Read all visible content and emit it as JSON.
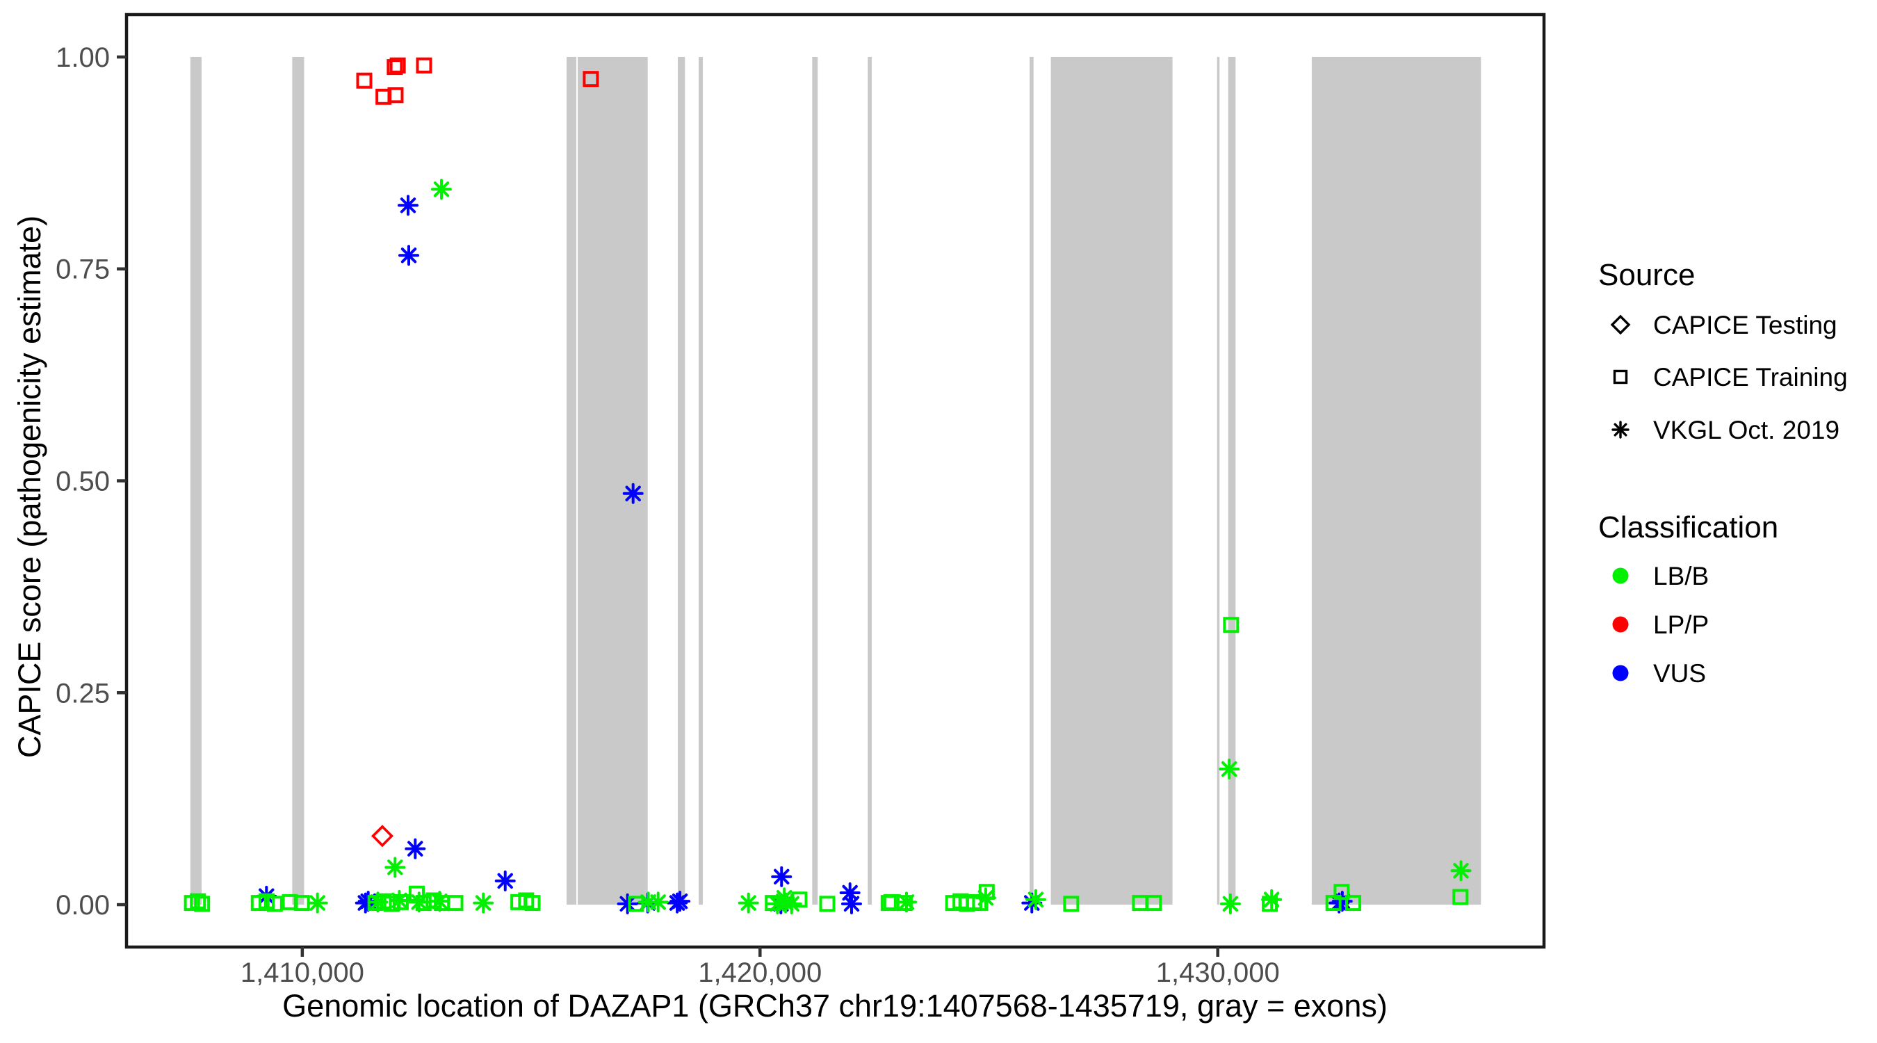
{
  "chart_data": {
    "type": "scatter",
    "title": "",
    "xlabel": "Genomic location of DAZAP1 (GRCh37 chr19:1407568-1435719, gray = exons)",
    "ylabel": "CAPICE score (pathogenicity estimate)",
    "x_domain": [
      1406160,
      1437127
    ],
    "y_domain": [
      -0.05,
      1.05
    ],
    "grid": false,
    "legend_position": "right",
    "x_ticks": [
      {
        "value": 1410000,
        "label": "1,410,000"
      },
      {
        "value": 1420000,
        "label": "1,420,000"
      },
      {
        "value": 1430000,
        "label": "1,430,000"
      }
    ],
    "y_ticks": [
      {
        "value": 0.0,
        "label": "0.00"
      },
      {
        "value": 0.25,
        "label": "0.25"
      },
      {
        "value": 0.5,
        "label": "0.50"
      },
      {
        "value": 0.75,
        "label": "0.75"
      },
      {
        "value": 1.0,
        "label": "1.00"
      }
    ],
    "exons": [
      [
        1407555,
        1407800
      ],
      [
        1409780,
        1410040
      ],
      [
        1415774,
        1415987
      ],
      [
        1416017,
        1417546
      ],
      [
        1418204,
        1418360
      ],
      [
        1418660,
        1418750
      ],
      [
        1421140,
        1421260
      ],
      [
        1422354,
        1422440
      ],
      [
        1425890,
        1425975
      ],
      [
        1426353,
        1429011
      ],
      [
        1429985,
        1430024
      ],
      [
        1430228,
        1430389
      ],
      [
        1432053,
        1435749
      ]
    ],
    "series": [
      {
        "name": "LP/P — CAPICE Training",
        "source": "CAPICE Training",
        "classification": "LP/P",
        "symbol": "square",
        "color": "#FF0000",
        "points": [
          [
            1411354,
            0.972
          ],
          [
            1411774,
            0.953
          ],
          [
            1412037,
            0.955
          ],
          [
            1412020,
            0.988
          ],
          [
            1412085,
            0.99
          ],
          [
            1412660,
            0.99
          ],
          [
            1416304,
            0.974
          ]
        ]
      },
      {
        "name": "LP/P — CAPICE Testing",
        "source": "CAPICE Testing",
        "classification": "LP/P",
        "symbol": "diamond",
        "color": "#FF0000",
        "points": [
          [
            1411749,
            0.081
          ]
        ]
      },
      {
        "name": "VUS — VKGL Oct. 2019",
        "source": "VKGL Oct. 2019",
        "classification": "VUS",
        "symbol": "asterisk",
        "color": "#0000FF",
        "points": [
          [
            1412311,
            0.825
          ],
          [
            1412326,
            0.766
          ],
          [
            1417227,
            0.485
          ],
          [
            1412467,
            0.066
          ],
          [
            1414433,
            0.028
          ],
          [
            1409217,
            0.01
          ],
          [
            1411380,
            0.002
          ],
          [
            1411440,
            0.004
          ],
          [
            1417105,
            0.001
          ],
          [
            1417546,
            0.002
          ],
          [
            1418190,
            0.002
          ],
          [
            1418250,
            0.004
          ],
          [
            1420456,
            0.001
          ],
          [
            1420470,
            0.033
          ],
          [
            1421965,
            0.014
          ],
          [
            1422000,
            0.001
          ],
          [
            1425938,
            0.002
          ],
          [
            1432650,
            0.002
          ],
          [
            1432720,
            0.004
          ]
        ]
      },
      {
        "name": "LB/B — VKGL Oct. 2019",
        "source": "VKGL Oct. 2019",
        "classification": "LB/B",
        "symbol": "asterisk",
        "color": "#00F000",
        "points": [
          [
            1413040,
            0.844
          ],
          [
            1430250,
            0.16
          ],
          [
            1410332,
            0.002
          ],
          [
            1412027,
            0.044
          ],
          [
            1411650,
            0.003
          ],
          [
            1412120,
            0.005
          ],
          [
            1412550,
            0.003
          ],
          [
            1413000,
            0.004
          ],
          [
            1413954,
            0.002
          ],
          [
            1417560,
            0.003
          ],
          [
            1417774,
            0.003
          ],
          [
            1419748,
            0.002
          ],
          [
            1420380,
            0.001
          ],
          [
            1420530,
            0.008
          ],
          [
            1420560,
            0.002
          ],
          [
            1420690,
            0.001
          ],
          [
            1423200,
            0.003
          ],
          [
            1424930,
            0.008
          ],
          [
            1426024,
            0.006
          ],
          [
            1430276,
            0.001
          ],
          [
            1431176,
            0.006
          ],
          [
            1435313,
            0.04
          ]
        ]
      },
      {
        "name": "LB/B — CAPICE Training",
        "source": "CAPICE Training",
        "classification": "LB/B",
        "symbol": "square",
        "color": "#00F000",
        "points": [
          [
            1407590,
            0.002
          ],
          [
            1407720,
            0.004
          ],
          [
            1407810,
            0.001
          ],
          [
            1409050,
            0.002
          ],
          [
            1409220,
            0.004
          ],
          [
            1409400,
            0.001
          ],
          [
            1409730,
            0.003
          ],
          [
            1409990,
            0.002
          ],
          [
            1411600,
            0.002
          ],
          [
            1411780,
            0.004
          ],
          [
            1411950,
            0.001
          ],
          [
            1412150,
            0.003
          ],
          [
            1412500,
            0.013
          ],
          [
            1412650,
            0.002
          ],
          [
            1412870,
            0.005
          ],
          [
            1413050,
            0.002
          ],
          [
            1413344,
            0.002
          ],
          [
            1414720,
            0.003
          ],
          [
            1414890,
            0.005
          ],
          [
            1415030,
            0.002
          ],
          [
            1417292,
            0.001
          ],
          [
            1420280,
            0.002
          ],
          [
            1420861,
            0.006
          ],
          [
            1421469,
            0.001
          ],
          [
            1422810,
            0.002
          ],
          [
            1422870,
            0.003
          ],
          [
            1423160,
            0.002
          ],
          [
            1424220,
            0.002
          ],
          [
            1424380,
            0.004
          ],
          [
            1424520,
            0.001
          ],
          [
            1424680,
            0.003
          ],
          [
            1424810,
            0.002
          ],
          [
            1424952,
            0.015
          ],
          [
            1426798,
            0.001
          ],
          [
            1428302,
            0.002
          ],
          [
            1428605,
            0.002
          ],
          [
            1430290,
            0.33
          ],
          [
            1431137,
            0.001
          ],
          [
            1432528,
            0.002
          ],
          [
            1432959,
            0.002
          ],
          [
            1432706,
            0.015
          ],
          [
            1435302,
            0.009
          ]
        ]
      }
    ]
  },
  "legend": {
    "source": {
      "title": "Source",
      "items": [
        {
          "symbol": "diamond",
          "label": "CAPICE Testing"
        },
        {
          "symbol": "square",
          "label": "CAPICE Training"
        },
        {
          "symbol": "asterisk",
          "label": "VKGL Oct. 2019"
        }
      ]
    },
    "classification": {
      "title": "Classification",
      "items": [
        {
          "color": "#00F000",
          "label": "LB/B"
        },
        {
          "color": "#FF0000",
          "label": "LP/P"
        },
        {
          "color": "#0000FF",
          "label": "VUS"
        }
      ]
    }
  },
  "colors": {
    "exon": "#C9C9C9",
    "panel_border": "#1A1A1A",
    "tick": "#333333",
    "tick_label": "#4D4D4D",
    "title": "#000000",
    "background": "#FFFFFF"
  }
}
